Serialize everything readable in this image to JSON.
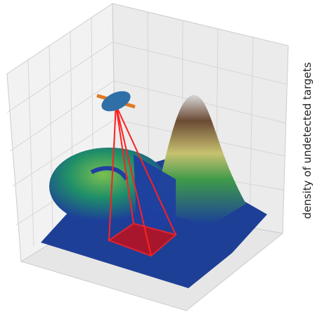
{
  "zlabel": "density of undetected targets"
}
